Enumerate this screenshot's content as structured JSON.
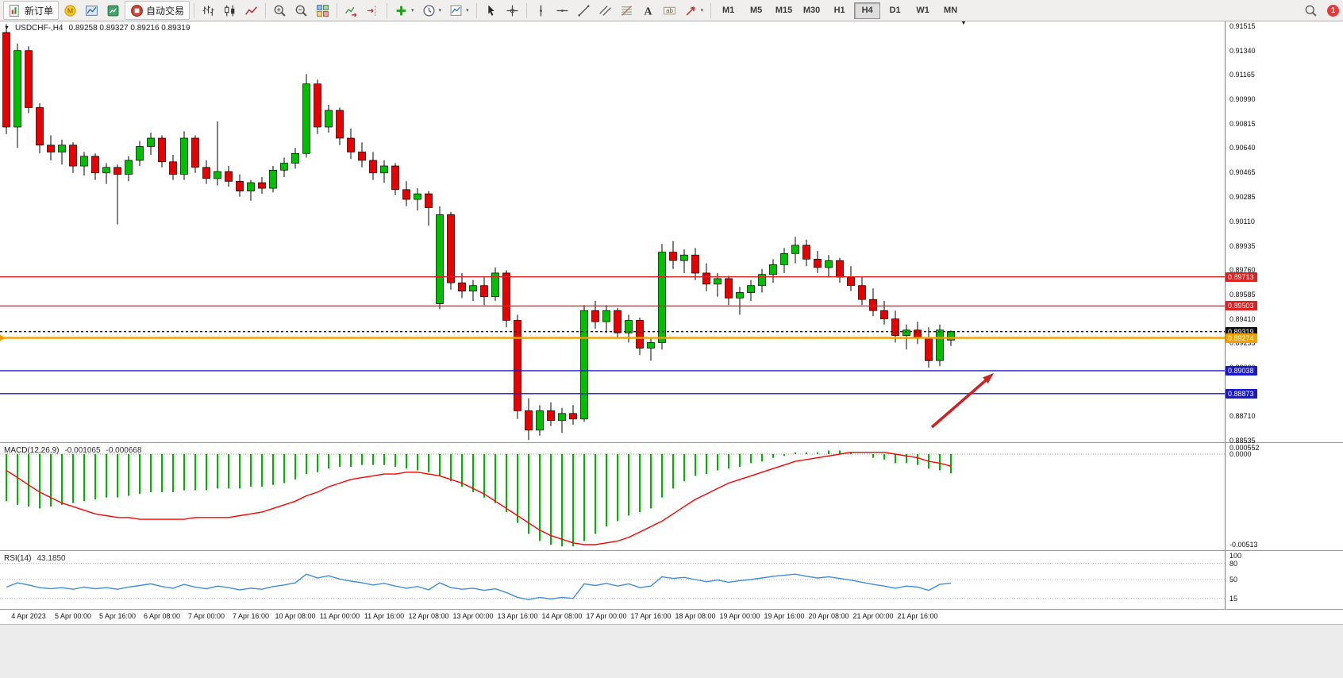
{
  "toolbar": {
    "new_order_label": "新订单",
    "autotrade_label": "自动交易",
    "timeframes": [
      "M1",
      "M5",
      "M15",
      "M30",
      "H1",
      "H4",
      "D1",
      "W1",
      "MN"
    ],
    "active_timeframe": "H4",
    "notification_count": "1",
    "groups": [
      [
        {
          "name": "new-order",
          "label": "新订单"
        },
        {
          "name": "mql5"
        },
        {
          "name": "chart-profiles"
        },
        {
          "name": "market-watch"
        },
        {
          "name": "autotrade",
          "label": "自动交易"
        }
      ],
      [
        {
          "name": "bar-chart"
        },
        {
          "name": "candle-chart"
        },
        {
          "name": "line-chart"
        }
      ],
      [
        {
          "name": "zoom-in"
        },
        {
          "name": "zoom-out"
        },
        {
          "name": "tile-windows"
        }
      ],
      [
        {
          "name": "auto-scroll"
        },
        {
          "name": "chart-shift"
        }
      ],
      [
        {
          "name": "indicators",
          "dropdown": true
        },
        {
          "name": "periods",
          "dropdown": true
        },
        {
          "name": "templates",
          "dropdown": true
        }
      ],
      [
        {
          "name": "cursor"
        },
        {
          "name": "crosshair"
        }
      ],
      [
        {
          "name": "vertical-line"
        },
        {
          "name": "horizontal-line"
        },
        {
          "name": "trend-line"
        },
        {
          "name": "equidistant-channel"
        },
        {
          "name": "fibonacci"
        },
        {
          "name": "text"
        },
        {
          "name": "text-label"
        },
        {
          "name": "arrows",
          "dropdown": true
        }
      ]
    ]
  },
  "chart": {
    "title": "USDCHF-,H4",
    "ohlc": "0.89258 0.89327 0.89216 0.89319",
    "price_axis_labels": [
      "0.91515",
      "0.91340",
      "0.91165",
      "0.90990",
      "0.90815",
      "0.90640",
      "0.90465",
      "0.90285",
      "0.90110",
      "0.89935",
      "0.89760",
      "0.89585",
      "0.89410",
      "0.89235",
      "0.89060",
      "0.88885",
      "0.88710",
      "0.88535"
    ],
    "price_min": 0.88535,
    "price_max": 0.91515,
    "up_color": "#00BE00",
    "down_color": "#E60000",
    "hlines": [
      {
        "price": 0.89713,
        "label": "0.89713",
        "color": "#dd2222",
        "kind": "resistance"
      },
      {
        "price": 0.89503,
        "label": "0.89503",
        "color": "#dd2222",
        "kind": "resistance"
      },
      {
        "price": 0.89319,
        "label": "0.89319",
        "color": "#111111",
        "kind": "bid"
      },
      {
        "price": 0.89274,
        "label": "0.89274",
        "color": "#f0a000",
        "kind": "order"
      },
      {
        "price": 0.89038,
        "label": "0.89038",
        "color": "#1a1acc",
        "kind": "support"
      },
      {
        "price": 0.88873,
        "label": "0.88873",
        "color": "#1a1acc",
        "kind": "support"
      }
    ],
    "candles": [
      [
        0.9147,
        0.9153,
        0.9074,
        0.9079
      ],
      [
        0.9079,
        0.9139,
        0.9064,
        0.9134
      ],
      [
        0.9134,
        0.9137,
        0.9089,
        0.9093
      ],
      [
        0.9093,
        0.9096,
        0.906,
        0.9066
      ],
      [
        0.9066,
        0.9073,
        0.9055,
        0.9061
      ],
      [
        0.9061,
        0.907,
        0.9052,
        0.9066
      ],
      [
        0.9066,
        0.9068,
        0.9046,
        0.9051
      ],
      [
        0.9051,
        0.9061,
        0.9044,
        0.9058
      ],
      [
        0.9058,
        0.906,
        0.9041,
        0.9046
      ],
      [
        0.9046,
        0.9053,
        0.9038,
        0.905
      ],
      [
        0.905,
        0.9052,
        0.9009,
        0.9045
      ],
      [
        0.9045,
        0.9058,
        0.904,
        0.9055
      ],
      [
        0.9055,
        0.9069,
        0.9051,
        0.9065
      ],
      [
        0.9065,
        0.9075,
        0.9059,
        0.9071
      ],
      [
        0.9071,
        0.9073,
        0.905,
        0.9054
      ],
      [
        0.9054,
        0.9059,
        0.9041,
        0.9045
      ],
      [
        0.9045,
        0.9076,
        0.9041,
        0.9071
      ],
      [
        0.9071,
        0.9073,
        0.9046,
        0.905
      ],
      [
        0.905,
        0.9055,
        0.9038,
        0.9042
      ],
      [
        0.9042,
        0.9083,
        0.9037,
        0.9047
      ],
      [
        0.9047,
        0.9051,
        0.9036,
        0.904
      ],
      [
        0.904,
        0.9045,
        0.9029,
        0.9033
      ],
      [
        0.9033,
        0.9041,
        0.9026,
        0.9039
      ],
      [
        0.9039,
        0.9043,
        0.9031,
        0.9035
      ],
      [
        0.9035,
        0.9051,
        0.9032,
        0.9048
      ],
      [
        0.9048,
        0.9057,
        0.9043,
        0.9053
      ],
      [
        0.9053,
        0.9064,
        0.9049,
        0.906
      ],
      [
        0.906,
        0.9117,
        0.9057,
        0.911
      ],
      [
        0.911,
        0.9113,
        0.9074,
        0.9079
      ],
      [
        0.9079,
        0.9095,
        0.9075,
        0.9091
      ],
      [
        0.9091,
        0.9093,
        0.9066,
        0.9071
      ],
      [
        0.9071,
        0.9078,
        0.9056,
        0.9061
      ],
      [
        0.9061,
        0.9068,
        0.905,
        0.9055
      ],
      [
        0.9055,
        0.9061,
        0.9041,
        0.9046
      ],
      [
        0.9046,
        0.9055,
        0.9039,
        0.9051
      ],
      [
        0.9051,
        0.9053,
        0.903,
        0.9034
      ],
      [
        0.9034,
        0.904,
        0.9022,
        0.9027
      ],
      [
        0.9027,
        0.9035,
        0.9019,
        0.9031
      ],
      [
        0.9031,
        0.9033,
        0.9008,
        0.9021
      ],
      [
        0.8952,
        0.9022,
        0.8948,
        0.9016
      ],
      [
        0.9016,
        0.9018,
        0.8962,
        0.8967
      ],
      [
        0.8967,
        0.8974,
        0.8956,
        0.8961
      ],
      [
        0.8961,
        0.8969,
        0.8954,
        0.8965
      ],
      [
        0.8965,
        0.8971,
        0.8951,
        0.8957
      ],
      [
        0.8957,
        0.8978,
        0.8954,
        0.8974
      ],
      [
        0.8974,
        0.8976,
        0.8935,
        0.894
      ],
      [
        0.894,
        0.8944,
        0.8869,
        0.8875
      ],
      [
        0.8875,
        0.8884,
        0.8854,
        0.8861
      ],
      [
        0.8861,
        0.8879,
        0.8857,
        0.8875
      ],
      [
        0.8875,
        0.8881,
        0.8864,
        0.8868
      ],
      [
        0.8868,
        0.8877,
        0.8859,
        0.8873
      ],
      [
        0.8873,
        0.8879,
        0.8865,
        0.8869
      ],
      [
        0.8869,
        0.8951,
        0.8867,
        0.8947
      ],
      [
        0.8947,
        0.8954,
        0.8934,
        0.8939
      ],
      [
        0.8939,
        0.8951,
        0.8931,
        0.8947
      ],
      [
        0.8947,
        0.8949,
        0.8927,
        0.8931
      ],
      [
        0.8931,
        0.8944,
        0.8924,
        0.894
      ],
      [
        0.894,
        0.8942,
        0.8915,
        0.892
      ],
      [
        0.892,
        0.8927,
        0.8911,
        0.8924
      ],
      [
        0.8924,
        0.8995,
        0.8919,
        0.8989
      ],
      [
        0.8989,
        0.8997,
        0.8977,
        0.8983
      ],
      [
        0.8983,
        0.8991,
        0.8974,
        0.8987
      ],
      [
        0.8987,
        0.8992,
        0.8969,
        0.8974
      ],
      [
        0.8974,
        0.8981,
        0.8961,
        0.8966
      ],
      [
        0.8966,
        0.8974,
        0.8957,
        0.897
      ],
      [
        0.897,
        0.8972,
        0.8951,
        0.8956
      ],
      [
        0.8956,
        0.8964,
        0.8944,
        0.896
      ],
      [
        0.896,
        0.8969,
        0.8954,
        0.8965
      ],
      [
        0.8965,
        0.8977,
        0.896,
        0.8973
      ],
      [
        0.8973,
        0.8984,
        0.8967,
        0.898
      ],
      [
        0.898,
        0.8992,
        0.8974,
        0.8988
      ],
      [
        0.8988,
        0.9,
        0.8981,
        0.8994
      ],
      [
        0.8994,
        0.8998,
        0.8979,
        0.8984
      ],
      [
        0.8984,
        0.899,
        0.8974,
        0.8978
      ],
      [
        0.8978,
        0.8987,
        0.8971,
        0.8983
      ],
      [
        0.8983,
        0.8985,
        0.8967,
        0.8971
      ],
      [
        0.8971,
        0.8979,
        0.8961,
        0.8965
      ],
      [
        0.8965,
        0.8971,
        0.8951,
        0.8955
      ],
      [
        0.8955,
        0.8963,
        0.8943,
        0.8947
      ],
      [
        0.8947,
        0.8954,
        0.8937,
        0.8941
      ],
      [
        0.8941,
        0.8947,
        0.8924,
        0.8929
      ],
      [
        0.8929,
        0.8937,
        0.8919,
        0.8933
      ],
      [
        0.8933,
        0.8939,
        0.8923,
        0.8927
      ],
      [
        0.8927,
        0.8935,
        0.8906,
        0.8911
      ],
      [
        0.8911,
        0.8937,
        0.8907,
        0.8933
      ],
      [
        0.89258,
        0.89327,
        0.89216,
        0.89319
      ]
    ]
  },
  "macd": {
    "label": "MACD(12,26,9)",
    "value_main": "-0.001065",
    "value_signal": "-0.000668",
    "axis_labels": [
      "0.000552",
      "0.0000",
      "-0.00513"
    ],
    "max": 0.000552,
    "min": -0.00513,
    "histogram_color": "#00B400",
    "signal_color": "#FF0000",
    "histogram": [
      -0.0026,
      -0.0028,
      -0.0029,
      -0.003,
      -0.0029,
      -0.0028,
      -0.0027,
      -0.0026,
      -0.0025,
      -0.0024,
      -0.0024,
      -0.0023,
      -0.0022,
      -0.0021,
      -0.0021,
      -0.0021,
      -0.002,
      -0.002,
      -0.002,
      -0.0019,
      -0.0019,
      -0.0019,
      -0.0018,
      -0.0018,
      -0.0017,
      -0.0016,
      -0.0014,
      -0.0011,
      -0.001,
      -0.0008,
      -0.0007,
      -0.0007,
      -0.0006,
      -0.0006,
      -0.0006,
      -0.0007,
      -0.0008,
      -0.0009,
      -0.001,
      -0.0012,
      -0.0015,
      -0.0018,
      -0.0021,
      -0.0024,
      -0.0027,
      -0.0032,
      -0.0038,
      -0.0044,
      -0.0048,
      -0.005,
      -0.0051,
      -0.0051,
      -0.0048,
      -0.0044,
      -0.004,
      -0.0037,
      -0.0034,
      -0.0032,
      -0.003,
      -0.0024,
      -0.0019,
      -0.0015,
      -0.0012,
      -0.0011,
      -0.0009,
      -0.0008,
      -0.0007,
      -0.0005,
      -0.0004,
      -0.0002,
      -0.0001,
      0.0001,
      0.0001,
      0.0001,
      0.0002,
      0.0002,
      0.0001,
      0.0,
      -0.0002,
      -0.0003,
      -0.0005,
      -0.0005,
      -0.0006,
      -0.0008,
      -0.0009,
      -0.001065
    ],
    "signal": [
      -0.0009,
      -0.0013,
      -0.0017,
      -0.0021,
      -0.0024,
      -0.0027,
      -0.0029,
      -0.0031,
      -0.0033,
      -0.0034,
      -0.0035,
      -0.0035,
      -0.0036,
      -0.0036,
      -0.0036,
      -0.0036,
      -0.0036,
      -0.0035,
      -0.0035,
      -0.0035,
      -0.0035,
      -0.0034,
      -0.0033,
      -0.0032,
      -0.003,
      -0.0028,
      -0.0026,
      -0.0023,
      -0.0021,
      -0.0018,
      -0.0016,
      -0.0014,
      -0.0013,
      -0.0012,
      -0.0011,
      -0.0011,
      -0.001,
      -0.001,
      -0.0011,
      -0.0012,
      -0.0014,
      -0.0016,
      -0.0019,
      -0.0022,
      -0.0026,
      -0.003,
      -0.0034,
      -0.0038,
      -0.0042,
      -0.0045,
      -0.0047,
      -0.0049,
      -0.005,
      -0.005,
      -0.0049,
      -0.0048,
      -0.0046,
      -0.0043,
      -0.004,
      -0.0037,
      -0.0033,
      -0.0029,
      -0.0025,
      -0.0022,
      -0.0019,
      -0.0016,
      -0.0014,
      -0.0012,
      -0.001,
      -0.0008,
      -0.0006,
      -0.0004,
      -0.0003,
      -0.0002,
      -0.0001,
      0.0,
      0.0001,
      0.0001,
      0.0001,
      0.0001,
      0.0,
      -0.0001,
      -0.0002,
      -0.0004,
      -0.0005,
      -0.000668
    ]
  },
  "rsi": {
    "label": "RSI(14)",
    "value": "43.1850",
    "axis_labels": [
      "100",
      "80",
      "50",
      "15"
    ],
    "levels": [
      80,
      50,
      15
    ],
    "line_color": "#3E8EDE",
    "values": [
      36,
      44,
      40,
      35,
      33,
      35,
      32,
      36,
      33,
      35,
      32,
      36,
      39,
      42,
      37,
      34,
      41,
      36,
      33,
      38,
      35,
      31,
      34,
      32,
      37,
      40,
      44,
      60,
      53,
      57,
      51,
      47,
      44,
      40,
      43,
      38,
      34,
      37,
      31,
      44,
      35,
      32,
      34,
      30,
      33,
      26,
      17,
      13,
      17,
      14,
      17,
      15,
      42,
      39,
      43,
      38,
      42,
      35,
      38,
      55,
      52,
      54,
      50,
      46,
      49,
      45,
      48,
      50,
      53,
      56,
      58,
      60,
      56,
      53,
      55,
      52,
      49,
      45,
      41,
      38,
      34,
      38,
      36,
      30,
      41,
      43.2
    ]
  },
  "time_axis": [
    "4 Apr 2023",
    "5 Apr 00:00",
    "5 Apr 16:00",
    "6 Apr 08:00",
    "7 Apr 00:00",
    "7 Apr 16:00",
    "10 Apr 08:00",
    "11 Apr 00:00",
    "11 Apr 16:00",
    "12 Apr 08:00",
    "13 Apr 00:00",
    "13 Apr 16:00",
    "14 Apr 08:00",
    "17 Apr 00:00",
    "17 Apr 16:00",
    "18 Apr 08:00",
    "19 Apr 00:00",
    "19 Apr 16:00",
    "20 Apr 08:00",
    "21 Apr 00:00",
    "21 Apr 16:00"
  ],
  "annotation": {
    "type": "arrow",
    "color": "#cc2222"
  }
}
